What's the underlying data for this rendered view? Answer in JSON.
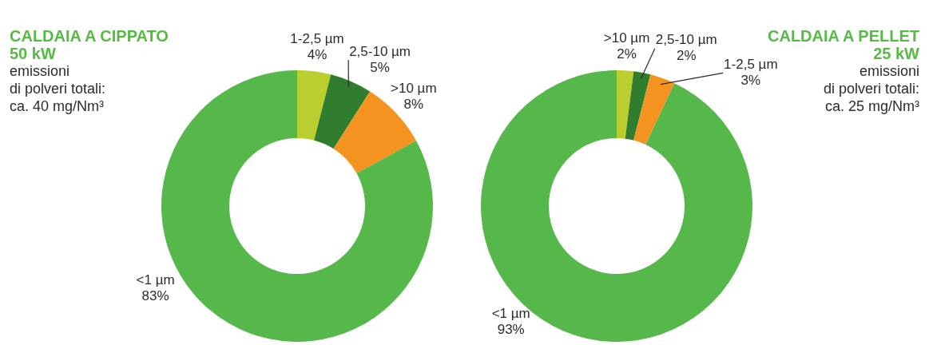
{
  "chart_data": [
    {
      "type": "donut",
      "title": "CALDAIA A CIPPATO",
      "subtitle": "50 kW",
      "annotations": [
        "emissioni",
        "di polveri totali:",
        "ca. 40 mg/Nm³"
      ],
      "categories": [
        "1-2,5 µm",
        "2,5-10 µm",
        ">10 µm",
        "<1 µm"
      ],
      "values": [
        4,
        5,
        8,
        83
      ],
      "value_labels": [
        "4%",
        "5%",
        "8%",
        "83%"
      ],
      "colors": [
        "#bacf2f",
        "#2f7d2d",
        "#f4931f",
        "#56b74b"
      ]
    },
    {
      "type": "donut",
      "title": "CALDAIA A PELLET",
      "subtitle": "25 kW",
      "annotations": [
        "emissioni",
        "di polveri totali:",
        "ca. 25 mg/Nm³"
      ],
      "categories": [
        ">10 µm",
        "2,5-10 µm",
        "1-2,5 µm",
        "<1 µm"
      ],
      "values": [
        2,
        2,
        3,
        93
      ],
      "value_labels": [
        "2%",
        "2%",
        "3%",
        "93%"
      ],
      "colors": [
        "#bacf2f",
        "#2f7d2d",
        "#f4931f",
        "#56b74b"
      ]
    }
  ]
}
